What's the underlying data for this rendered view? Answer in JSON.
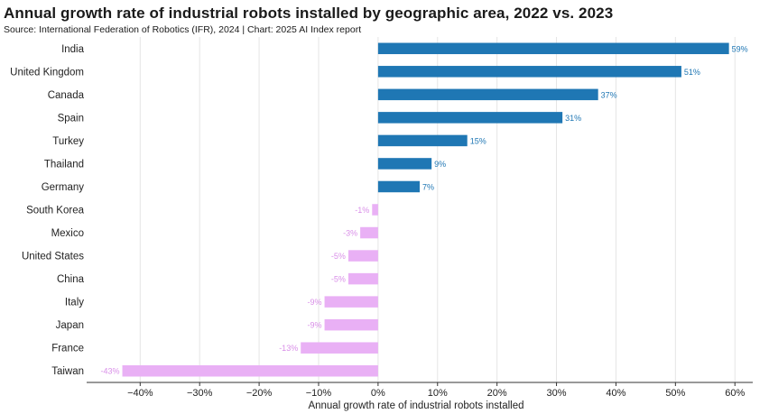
{
  "title": "Annual growth rate of industrial robots installed by geographic area, 2022 vs. 2023",
  "subtitle": "Source: International Federation of Robotics (IFR), 2024 | Chart: 2025 AI Index report",
  "colors": {
    "positive": "#1f77b4",
    "negative": "#e9b0f5",
    "negative_label": "#d98fe8",
    "grid": "#e5e5e5"
  },
  "chart_data": {
    "type": "bar",
    "orientation": "horizontal",
    "categories": [
      "India",
      "United Kingdom",
      "Canada",
      "Spain",
      "Turkey",
      "Thailand",
      "Germany",
      "South Korea",
      "Mexico",
      "United States",
      "China",
      "Italy",
      "Japan",
      "France",
      "Taiwan"
    ],
    "values": [
      59,
      51,
      37,
      31,
      15,
      9,
      7,
      -1,
      -3,
      -5,
      -5,
      -9,
      -9,
      -13,
      -43
    ],
    "data_labels": [
      "59%",
      "51%",
      "37%",
      "31%",
      "15%",
      "9%",
      "7%",
      "-1%",
      "-3%",
      "-5%",
      "-5%",
      "-9%",
      "-9%",
      "-13%",
      "-43%"
    ],
    "xlabel": "Annual growth rate of industrial robots installed",
    "ylabel": "",
    "xlim": [
      -49,
      63
    ],
    "xticks": [
      -40,
      -30,
      -20,
      -10,
      0,
      10,
      20,
      30,
      40,
      50,
      60
    ],
    "xtick_labels": [
      "−40%",
      "−30%",
      "−20%",
      "−10%",
      "0%",
      "10%",
      "20%",
      "30%",
      "40%",
      "50%",
      "60%"
    ],
    "grid": true
  }
}
